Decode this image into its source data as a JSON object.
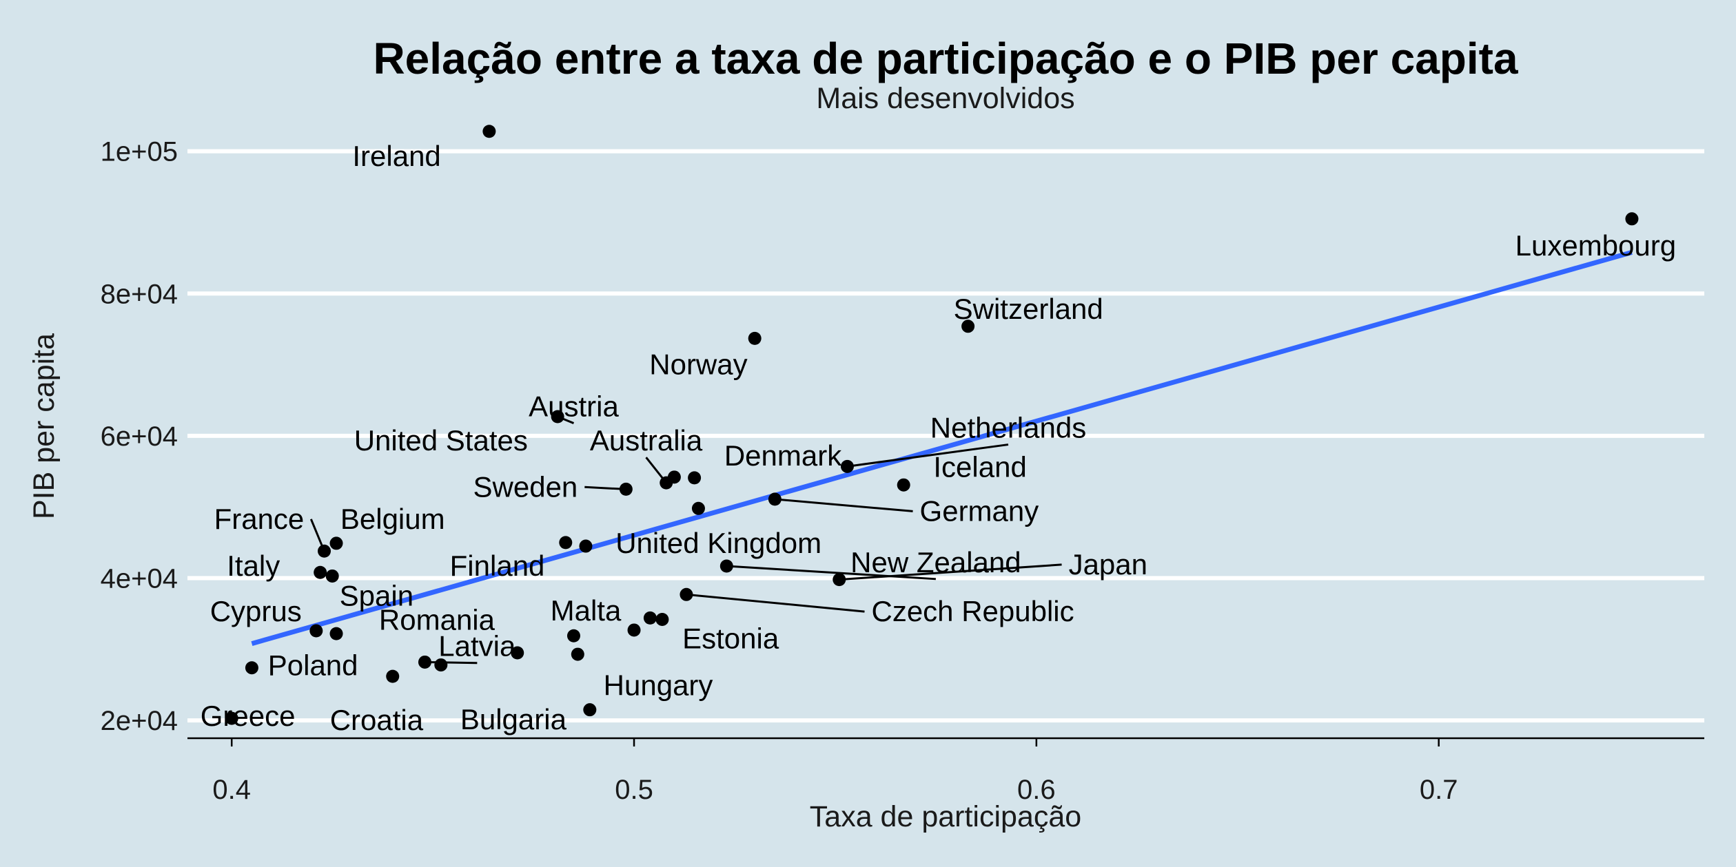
{
  "chart_data": {
    "type": "scatter",
    "title": "Relação entre a taxa de participação e o PIB per capita",
    "subtitle": "Mais desenvolvidos",
    "xlabel": "Taxa de participação",
    "ylabel": "PIB per capita",
    "xlim": [
      0.389,
      0.766
    ],
    "ylim": [
      17500,
      105000
    ],
    "x_ticks": [
      0.4,
      0.5,
      0.6,
      0.7
    ],
    "x_tick_labels": [
      "0.4",
      "0.5",
      "0.6",
      "0.7"
    ],
    "y_ticks": [
      20000,
      40000,
      60000,
      80000,
      100000
    ],
    "y_tick_labels": [
      "2e+04",
      "4e+04",
      "6e+04",
      "8e+04",
      "1e+05"
    ],
    "grid": "horizontal major lines",
    "trend_line": {
      "x": [
        0.405,
        0.748
      ],
      "y": [
        30800,
        85800
      ]
    },
    "colors": {
      "background": "#d5e4eb",
      "points": "#000000",
      "trend": "#3366ff",
      "grid": "#ffffff"
    },
    "points": [
      {
        "label": "Ireland",
        "x": 0.464,
        "y": 102800,
        "lx": 0.452,
        "ly": 99300,
        "anchor": "end",
        "line": false
      },
      {
        "label": "Luxembourg",
        "x": 0.748,
        "y": 90500,
        "lx": 0.739,
        "ly": 86700,
        "anchor": "middle",
        "line": false
      },
      {
        "label": "Switzerland",
        "x": 0.583,
        "y": 75400,
        "lx": 0.598,
        "ly": 77800,
        "anchor": "middle",
        "line": false
      },
      {
        "label": "Norway",
        "x": 0.53,
        "y": 73700,
        "lx": 0.516,
        "ly": 70000,
        "anchor": "middle",
        "line": false
      },
      {
        "label": "Austria",
        "x": 0.481,
        "y": 62700,
        "lx": 0.485,
        "ly": 64100,
        "anchor": "middle",
        "line": true
      },
      {
        "label": "Netherlands",
        "x": 0.553,
        "y": 55700,
        "lx": 0.593,
        "ly": 61100,
        "anchor": "middle",
        "line": true
      },
      {
        "label": "United States",
        "x": 0.51,
        "y": 54200,
        "lx": 0.452,
        "ly": 59300,
        "anchor": "middle",
        "line": false
      },
      {
        "label": "Australia",
        "x": 0.508,
        "y": 53400,
        "lx": 0.503,
        "ly": 59300,
        "anchor": "middle",
        "line": true
      },
      {
        "label": "Denmark",
        "x": 0.515,
        "y": 54100,
        "lx": 0.537,
        "ly": 57200,
        "anchor": "middle",
        "line": false
      },
      {
        "label": "Iceland",
        "x": 0.567,
        "y": 53100,
        "lx": 0.586,
        "ly": 55600,
        "anchor": "middle",
        "line": false
      },
      {
        "label": "Sweden",
        "x": 0.498,
        "y": 52500,
        "lx": 0.486,
        "ly": 52800,
        "anchor": "end",
        "line": true
      },
      {
        "label": "Germany",
        "x": 0.535,
        "y": 51100,
        "lx": 0.571,
        "ly": 49400,
        "anchor": "start",
        "line": true
      },
      {
        "label": "United Kingdom",
        "x": 0.516,
        "y": 49800,
        "lx": 0.521,
        "ly": 44900,
        "anchor": "middle",
        "line": false
      },
      {
        "label": "France",
        "x": 0.423,
        "y": 43800,
        "lx": 0.418,
        "ly": 48300,
        "anchor": "end",
        "line": true
      },
      {
        "label": "Belgium",
        "x": 0.426,
        "y": 44900,
        "lx": 0.44,
        "ly": 48300,
        "anchor": "middle",
        "line": false
      },
      {
        "label": "Finland",
        "x": 0.483,
        "y": 45000,
        "lx": 0.466,
        "ly": 41700,
        "anchor": "middle",
        "line": false
      },
      {
        "label": "Italy",
        "x": 0.422,
        "y": 40800,
        "lx": 0.412,
        "ly": 41700,
        "anchor": "end",
        "line": false
      },
      {
        "label": "Spain",
        "x": 0.425,
        "y": 40300,
        "lx": 0.436,
        "ly": 37500,
        "anchor": "middle",
        "line": false
      },
      {
        "label": "New Zealand",
        "x": 0.523,
        "y": 41700,
        "lx": 0.575,
        "ly": 42200,
        "anchor": "middle",
        "line": true
      },
      {
        "label": "Japan",
        "x": 0.551,
        "y": 39800,
        "lx": 0.608,
        "ly": 41900,
        "anchor": "start",
        "line": true
      },
      {
        "label": "Czech Republic",
        "x": 0.513,
        "y": 37700,
        "lx": 0.559,
        "ly": 35300,
        "anchor": "start",
        "line": true
      },
      {
        "label": "Cyprus",
        "x": 0.421,
        "y": 32600,
        "lx": 0.406,
        "ly": 35300,
        "anchor": "middle",
        "line": false
      },
      {
        "label": "Malta",
        "x": 0.485,
        "y": 31900,
        "lx": 0.488,
        "ly": 35400,
        "anchor": "middle",
        "line": false
      },
      {
        "label": "Romania",
        "x": 0.426,
        "y": 32200,
        "lx": 0.451,
        "ly": 34100,
        "anchor": "middle",
        "line": false
      },
      {
        "label": "Estonia",
        "x": 0.5,
        "y": 32700,
        "lx": 0.512,
        "ly": 31500,
        "anchor": "start",
        "line": false
      },
      {
        "label": "Latvia",
        "x": 0.448,
        "y": 28200,
        "lx": 0.461,
        "ly": 30400,
        "anchor": "middle",
        "line": true
      },
      {
        "label": "Poland",
        "x": 0.405,
        "y": 27400,
        "lx": 0.409,
        "ly": 27700,
        "anchor": "start",
        "line": false
      },
      {
        "label": "Hungary",
        "x": 0.486,
        "y": 29300,
        "lx": 0.506,
        "ly": 24900,
        "anchor": "middle",
        "line": false
      },
      {
        "label": "Croatia",
        "x": 0.44,
        "y": 26200,
        "lx": 0.436,
        "ly": 20000,
        "anchor": "middle",
        "line": false
      },
      {
        "label": "Greece",
        "x": 0.4,
        "y": 20300,
        "lx": 0.404,
        "ly": 20600,
        "anchor": "middle",
        "line": false
      },
      {
        "label": "Bulgaria",
        "x": 0.489,
        "y": 21500,
        "lx": 0.47,
        "ly": 20100,
        "anchor": "middle",
        "line": false
      },
      {
        "label": "",
        "x": 0.452,
        "y": 27800,
        "line": false
      },
      {
        "label": "",
        "x": 0.471,
        "y": 29500,
        "line": false
      },
      {
        "label": "",
        "x": 0.488,
        "y": 44500,
        "line": false
      },
      {
        "label": "",
        "x": 0.504,
        "y": 34400,
        "line": false
      },
      {
        "label": "",
        "x": 0.507,
        "y": 34200,
        "line": false
      }
    ]
  }
}
